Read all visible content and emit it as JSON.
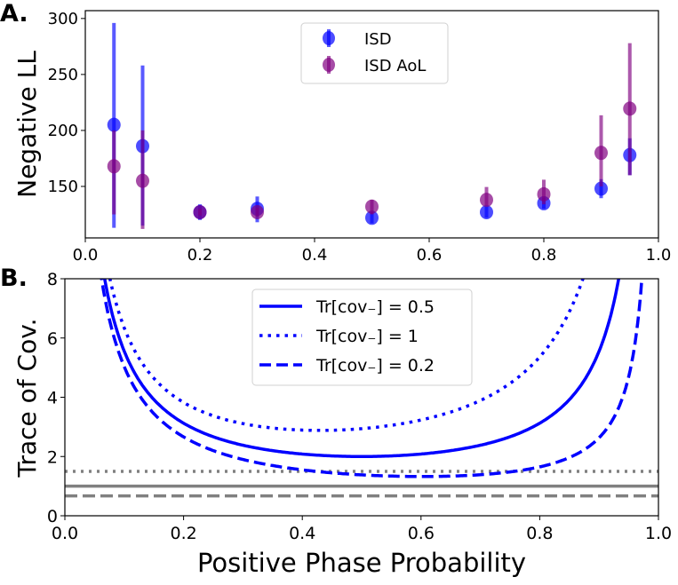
{
  "chart_data": [
    {
      "panel_label": "A.",
      "type": "scatter",
      "ylabel": "Negative LL",
      "xlabel": "",
      "xlim": [
        0.0,
        1.0
      ],
      "ylim": [
        104,
        307
      ],
      "xticks": [
        "0.0",
        "0.2",
        "0.4",
        "0.6",
        "0.8",
        "1.0"
      ],
      "yticks": [
        "150",
        "200",
        "250",
        "300"
      ],
      "legend_position": "top-center",
      "x": [
        0.05,
        0.1,
        0.2,
        0.3,
        0.5,
        0.7,
        0.8,
        0.9,
        0.95
      ],
      "series": [
        {
          "name": "ISD",
          "color": "#0000ff",
          "values": [
            205,
            186,
            127,
            130,
            122,
            127,
            135,
            148,
            178
          ],
          "err_low": [
            113,
            115,
            120,
            118,
            117,
            122,
            130,
            139.5,
            160
          ],
          "err_high": [
            296,
            258,
            134,
            141,
            127,
            132,
            140,
            156.5,
            193
          ]
        },
        {
          "name": "ISD AoL",
          "color": "#800080",
          "values": [
            168,
            155,
            127,
            127,
            132,
            138,
            143,
            180,
            219.5
          ],
          "err_low": [
            125,
            112,
            124,
            123,
            125,
            133,
            134,
            150,
            160
          ],
          "err_high": [
            200,
            200,
            130,
            131,
            138,
            149.5,
            156,
            213.5,
            278
          ]
        }
      ]
    },
    {
      "panel_label": "B.",
      "type": "line",
      "ylabel": "Trace of Cov.",
      "xlabel": "Positive Phase Probability",
      "xlim": [
        0.0,
        1.0
      ],
      "ylim": [
        0,
        8
      ],
      "xticks": [
        "0.0",
        "0.2",
        "0.4",
        "0.6",
        "0.8",
        "1.0"
      ],
      "yticks": [
        "0",
        "2",
        "4",
        "6",
        "8"
      ],
      "legend_position": "top-center",
      "series": [
        {
          "name": "Tr[cov₋] = 0.5",
          "color": "#0000ff",
          "style": "solid",
          "a": 0.5,
          "b": 0.5
        },
        {
          "name": "Tr[cov₋] = 1",
          "color": "#0000ff",
          "style": "dotted",
          "a": 0.53,
          "b": 0.94
        },
        {
          "name": "Tr[cov₋] = 0.2",
          "color": "#0000ff",
          "style": "dashed",
          "a": 0.48,
          "b": 0.21
        }
      ],
      "curve_form": "a/p + b/(1-p)",
      "hlines": [
        {
          "y": 1.5,
          "color": "#808080",
          "style": "dotted"
        },
        {
          "y": 1.0,
          "color": "#808080",
          "style": "solid"
        },
        {
          "y": 0.67,
          "color": "#808080",
          "style": "dashed"
        }
      ]
    }
  ]
}
